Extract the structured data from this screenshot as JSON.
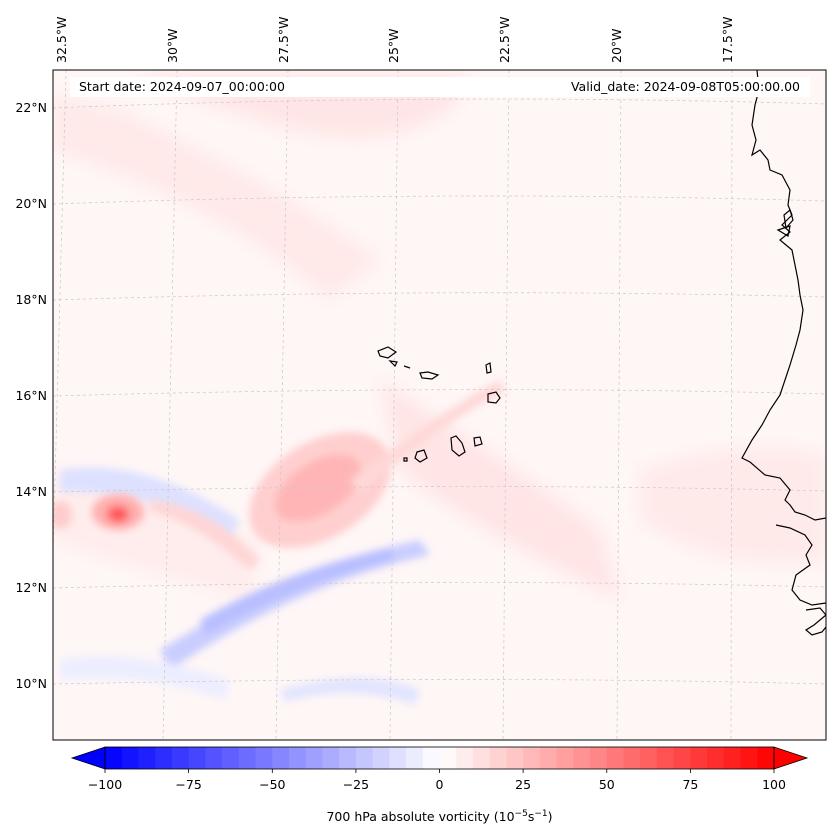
{
  "map": {
    "start_date": "Start date: 2024-09-07_00:00:00",
    "valid_date": "Valid_date: 2024-09-08T05:00:00.00",
    "lon_labels": [
      "32.5°W",
      "30°W",
      "27.5°W",
      "25°W",
      "22.5°W",
      "20°W",
      "17.5°W"
    ],
    "lat_labels": [
      "22°N",
      "20°N",
      "18°N",
      "16°N",
      "14°N",
      "12°N",
      "10°N"
    ],
    "gridlines": true,
    "coastline_color": "#000000"
  },
  "colorbar": {
    "label_prefix": "700 hPa absolute vorticity (10",
    "label_exp1": "−5",
    "label_mid": "s",
    "label_exp2": "−1",
    "label_suffix": ")",
    "ticks": [
      "−100",
      "−75",
      "−50",
      "−25",
      "0",
      "25",
      "50",
      "75",
      "100"
    ],
    "min": -100,
    "max": 100,
    "levels": 40,
    "cmap": "bwr",
    "low_color": "#0000ff",
    "mid_color": "#ffffff",
    "high_color": "#ff0000",
    "extend": "both"
  }
}
